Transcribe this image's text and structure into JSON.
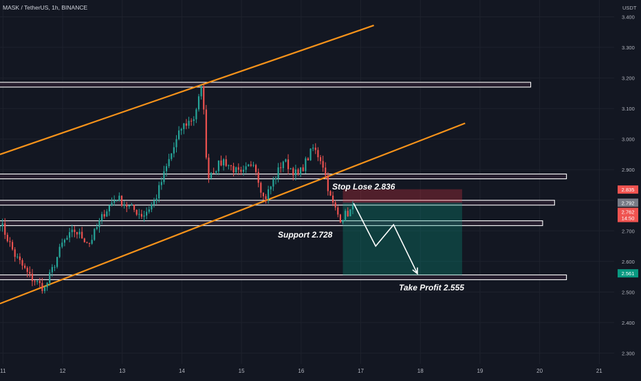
{
  "header": {
    "symbol_line": "MASK / TetherUS, 1h, BINANCE",
    "currency": "USDT"
  },
  "chart_data": {
    "type": "candlestick",
    "x_ticks": [
      "11",
      "12",
      "13",
      "14",
      "15",
      "16",
      "17",
      "18",
      "19",
      "20",
      "21"
    ],
    "y_ticks": [
      "3.400",
      "3.300",
      "3.200",
      "3.100",
      "3.000",
      "2.900",
      "2.800",
      "2.700",
      "2.600",
      "2.500",
      "2.400",
      "2.300"
    ],
    "ylim": [
      2.265,
      3.455
    ],
    "xlim": [
      10.95,
      21.25
    ],
    "grid": true,
    "colors": {
      "up": "#26a69a",
      "down": "#ef5350",
      "trend": "#f7931a",
      "zone": "#ffffff",
      "zone_fill": "#2a2030"
    },
    "annotations": {
      "stop": "Stop Lose 2.836",
      "support": "Support 2.728",
      "tp": "Take Profit 2.555"
    },
    "price_tags": [
      {
        "label": "2.835",
        "price": 2.835,
        "color": "#ef5350"
      },
      {
        "label": "2.792",
        "price": 2.792,
        "color": "#787b86"
      },
      {
        "label": "2.762",
        "price": 2.762,
        "color": "#ef5350"
      },
      {
        "label": "14:50",
        "price": 2.742,
        "color": "#ef5350"
      },
      {
        "label": "2.561",
        "price": 2.561,
        "color": "#089981"
      }
    ],
    "trend_lines": [
      {
        "from": [
          10.95,
          2.95
        ],
        "to": [
          17.22,
          3.372
        ]
      },
      {
        "from": [
          10.95,
          2.462
        ],
        "to": [
          18.75,
          3.052
        ]
      }
    ],
    "zones": [
      {
        "price": 3.178,
        "x_end": 19.85
      },
      {
        "price": 2.878,
        "x_end": 20.45
      },
      {
        "price": 2.792,
        "x_end": 20.25
      },
      {
        "price": 2.725,
        "x_end": 20.05
      },
      {
        "price": 2.548,
        "x_end": 20.45
      }
    ],
    "position": {
      "x_start": 16.7,
      "x_end": 18.7,
      "entry": 2.792,
      "stop": 2.836,
      "target": 2.555
    },
    "projection": [
      [
        16.88,
        2.79
      ],
      [
        17.25,
        2.65
      ],
      [
        17.55,
        2.72
      ],
      [
        17.95,
        2.56
      ]
    ],
    "anchors": [
      [
        10.95,
        2.73
      ],
      [
        11.2,
        2.62
      ],
      [
        11.45,
        2.55
      ],
      [
        11.7,
        2.51
      ],
      [
        12.0,
        2.66
      ],
      [
        12.2,
        2.7
      ],
      [
        12.45,
        2.66
      ],
      [
        12.7,
        2.76
      ],
      [
        12.9,
        2.81
      ],
      [
        13.1,
        2.78
      ],
      [
        13.35,
        2.75
      ],
      [
        13.55,
        2.8
      ],
      [
        13.8,
        2.94
      ],
      [
        14.0,
        3.04
      ],
      [
        14.2,
        3.07
      ],
      [
        14.35,
        3.18
      ],
      [
        14.42,
        2.88
      ],
      [
        14.7,
        2.93
      ],
      [
        15.0,
        2.88
      ],
      [
        15.2,
        2.93
      ],
      [
        15.38,
        2.8
      ],
      [
        15.7,
        2.93
      ],
      [
        15.95,
        2.88
      ],
      [
        16.2,
        2.97
      ],
      [
        16.35,
        2.93
      ],
      [
        16.5,
        2.8
      ],
      [
        16.65,
        2.74
      ],
      [
        16.9,
        2.775
      ]
    ]
  }
}
